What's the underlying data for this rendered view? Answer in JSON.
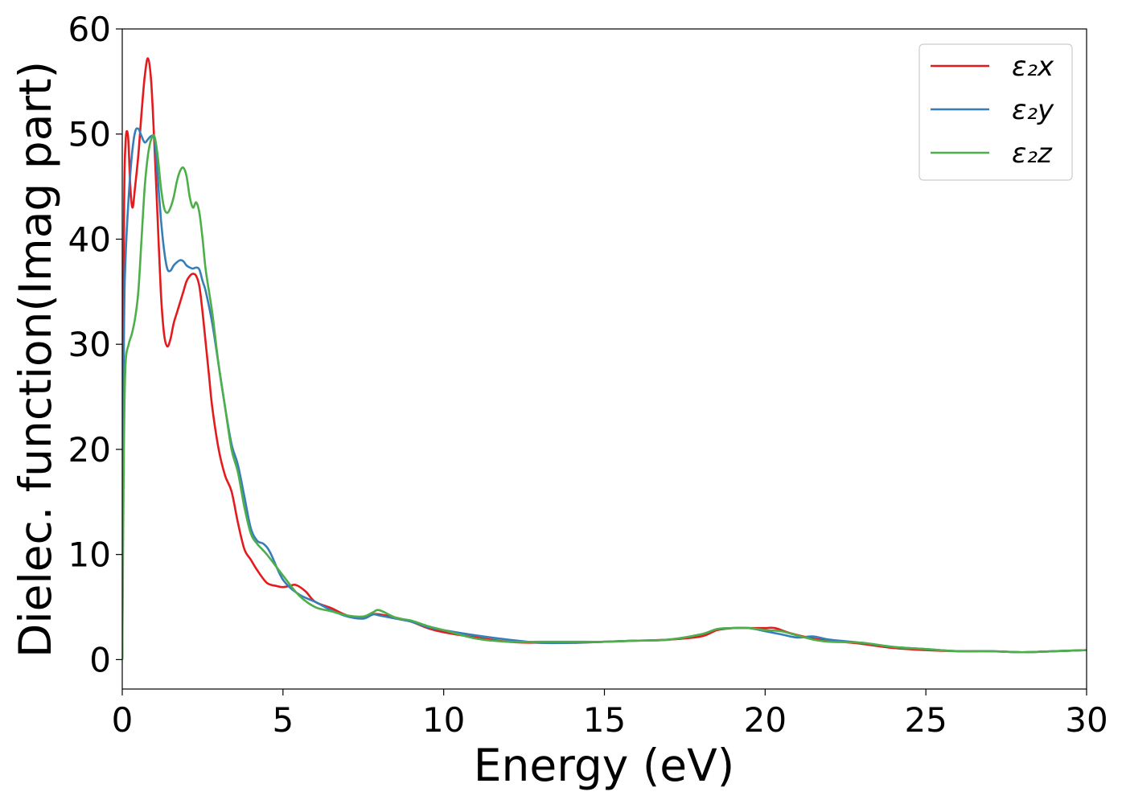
{
  "chart_data": {
    "type": "line",
    "title": "",
    "xlabel": "Energy (eV)",
    "ylabel": "Dielec. function(Imag part)",
    "xlim": [
      0,
      30
    ],
    "ylim": [
      -2.8,
      60
    ],
    "xticks": [
      0,
      5,
      10,
      15,
      20,
      25,
      30
    ],
    "yticks": [
      0,
      10,
      20,
      30,
      40,
      50,
      60
    ],
    "xtick_labels": [
      "0",
      "5",
      "10",
      "15",
      "20",
      "25",
      "30"
    ],
    "ytick_labels": [
      "0",
      "10",
      "20",
      "30",
      "40",
      "50",
      "60"
    ],
    "grid": false,
    "legend_position": "top-right",
    "series": [
      {
        "name": "ε₂x",
        "color": "#e41a1c",
        "x": [
          0,
          0.05,
          0.1,
          0.18,
          0.25,
          0.32,
          0.4,
          0.5,
          0.6,
          0.7,
          0.8,
          0.9,
          1.0,
          1.1,
          1.2,
          1.3,
          1.4,
          1.5,
          1.6,
          1.7,
          1.8,
          1.9,
          2.0,
          2.1,
          2.2,
          2.3,
          2.4,
          2.5,
          2.6,
          2.7,
          2.8,
          3.0,
          3.2,
          3.4,
          3.6,
          3.8,
          4.0,
          4.2,
          4.5,
          4.8,
          5.0,
          5.2,
          5.4,
          5.7,
          6.0,
          6.5,
          7.0,
          7.5,
          7.8,
          8.0,
          8.5,
          9.0,
          9.5,
          10,
          11,
          12,
          13,
          14,
          15,
          16,
          17,
          18,
          18.5,
          19,
          19.5,
          20,
          20.3,
          20.8,
          21.5,
          22,
          23,
          24,
          25,
          26,
          27,
          28,
          29,
          30
        ],
        "y": [
          0,
          40,
          49,
          49.8,
          45,
          43,
          45,
          48,
          52,
          55.5,
          57.2,
          55,
          49,
          42,
          35,
          31,
          29.8,
          30.5,
          32,
          33,
          34,
          35,
          36,
          36.5,
          36.7,
          36.5,
          35.5,
          33,
          30,
          27,
          24,
          20,
          17.5,
          16,
          13,
          10.5,
          9.5,
          8.5,
          7.3,
          7.0,
          6.9,
          7.0,
          7.1,
          6.5,
          5.5,
          4.9,
          4.2,
          4.0,
          4.3,
          4.3,
          4.0,
          3.6,
          3.0,
          2.6,
          2.1,
          1.7,
          1.6,
          1.6,
          1.7,
          1.8,
          1.9,
          2.2,
          2.8,
          3.0,
          3.0,
          3.0,
          3.0,
          2.5,
          2.0,
          1.8,
          1.5,
          1.1,
          0.9,
          0.8,
          0.8,
          0.7,
          0.8,
          0.9
        ]
      },
      {
        "name": "ε₂y",
        "color": "#377eb8",
        "x": [
          0,
          0.05,
          0.1,
          0.2,
          0.3,
          0.4,
          0.5,
          0.6,
          0.7,
          0.8,
          0.9,
          1.0,
          1.1,
          1.2,
          1.3,
          1.4,
          1.5,
          1.6,
          1.7,
          1.8,
          1.9,
          2.0,
          2.1,
          2.2,
          2.3,
          2.4,
          2.5,
          2.6,
          2.8,
          3.0,
          3.2,
          3.4,
          3.6,
          3.8,
          4.0,
          4.2,
          4.4,
          4.6,
          5.0,
          5.5,
          6.0,
          6.5,
          7.0,
          7.5,
          7.8,
          8.0,
          8.5,
          9.0,
          9.5,
          10,
          11,
          12,
          13,
          14,
          15,
          16,
          17,
          18,
          18.5,
          19,
          19.5,
          20,
          20.5,
          21,
          21.5,
          22,
          23,
          24,
          25,
          26,
          27,
          28,
          29,
          30
        ],
        "y": [
          0,
          30,
          38,
          44,
          48,
          50.2,
          50.5,
          49.8,
          49.2,
          49.5,
          49.8,
          49.5,
          46,
          42,
          39,
          37.2,
          37,
          37.5,
          37.8,
          38,
          37.9,
          37.5,
          37.3,
          37.2,
          37.3,
          37.1,
          36,
          35,
          32,
          28,
          24,
          20.5,
          18.5,
          15.5,
          12.5,
          11.3,
          11.0,
          10.2,
          7.6,
          6.2,
          5.5,
          4.7,
          4.1,
          3.9,
          4.3,
          4.2,
          3.9,
          3.6,
          3.1,
          2.8,
          2.3,
          1.9,
          1.6,
          1.6,
          1.7,
          1.8,
          1.9,
          2.4,
          2.9,
          3.0,
          3.0,
          2.7,
          2.4,
          2.1,
          2.2,
          1.9,
          1.6,
          1.2,
          1.0,
          0.8,
          0.8,
          0.7,
          0.8,
          0.9
        ]
      },
      {
        "name": "ε₂z",
        "color": "#4daf4a",
        "x": [
          0,
          0.05,
          0.1,
          0.2,
          0.3,
          0.4,
          0.5,
          0.6,
          0.7,
          0.8,
          0.9,
          1.0,
          1.1,
          1.2,
          1.3,
          1.4,
          1.5,
          1.6,
          1.7,
          1.8,
          1.9,
          2.0,
          2.1,
          2.2,
          2.3,
          2.4,
          2.5,
          2.6,
          2.8,
          3.0,
          3.2,
          3.4,
          3.6,
          3.8,
          4.0,
          4.2,
          4.5,
          5.0,
          5.5,
          6.0,
          6.5,
          7.0,
          7.5,
          7.8,
          8.0,
          8.5,
          9.0,
          9.5,
          10,
          11,
          12,
          13,
          14,
          15,
          16,
          17,
          18,
          18.5,
          19,
          19.5,
          20,
          20.5,
          21,
          21.5,
          22,
          23,
          24,
          25,
          26,
          27,
          28,
          29,
          30
        ],
        "y": [
          0,
          20,
          28,
          30,
          31,
          32.5,
          35,
          40,
          45,
          48,
          49.5,
          49.8,
          48,
          45,
          43,
          42.5,
          43,
          44,
          45.5,
          46.5,
          46.8,
          46,
          44,
          43,
          43.5,
          42.5,
          40,
          37,
          33,
          28,
          24,
          20,
          17.8,
          14.5,
          12,
          11,
          10,
          8,
          6.1,
          5.0,
          4.6,
          4.2,
          4.1,
          4.5,
          4.7,
          4.0,
          3.7,
          3.2,
          2.8,
          2.0,
          1.7,
          1.7,
          1.7,
          1.7,
          1.8,
          1.9,
          2.4,
          2.9,
          3.0,
          3.0,
          2.8,
          2.7,
          2.3,
          1.9,
          1.7,
          1.6,
          1.2,
          1.0,
          0.8,
          0.8,
          0.7,
          0.8,
          0.9
        ]
      }
    ]
  }
}
